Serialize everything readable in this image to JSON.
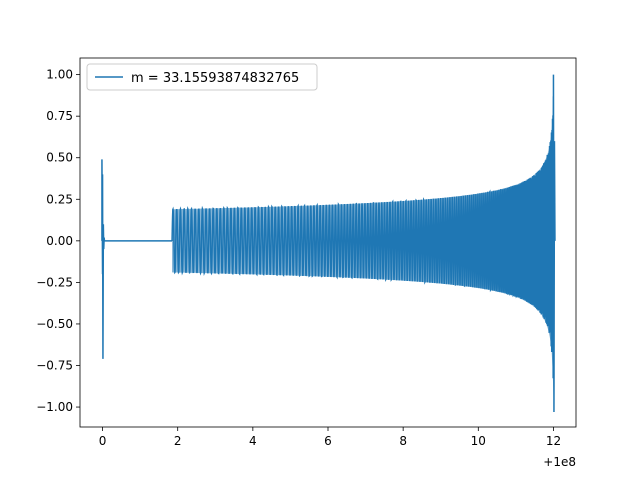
{
  "chart_data": {
    "type": "line",
    "title": "",
    "xlabel": "",
    "ylabel": "",
    "x_offset_label": "+1e8",
    "xlim": [
      -0.6,
      12.6
    ],
    "ylim": [
      -1.12,
      1.1
    ],
    "x_ticks": [
      0,
      2,
      4,
      6,
      8,
      10,
      12
    ],
    "x_tick_labels": [
      "0",
      "2",
      "4",
      "6",
      "8",
      "10",
      "12"
    ],
    "y_ticks": [
      -1.0,
      -0.75,
      -0.5,
      -0.25,
      0.0,
      0.25,
      0.5,
      0.75,
      1.0
    ],
    "y_tick_labels": [
      "−1.00",
      "−0.75",
      "−0.50",
      "−0.25",
      "0.00",
      "0.25",
      "0.50",
      "0.75",
      "1.00"
    ],
    "grid": false,
    "legend_position": "top-left",
    "series": [
      {
        "name": "m = 33.15593874832765",
        "color": "#1f77b4",
        "segments": [
          {
            "kind": "spike",
            "x": 0.0,
            "min": -0.71,
            "max": 0.49
          },
          {
            "kind": "flat",
            "x_start": 0.05,
            "x_end": 1.85,
            "y": 0.0
          },
          {
            "kind": "chirp",
            "x_start": 1.85,
            "x_end": 12.0,
            "amp_start": 0.19,
            "amp_end": 1.0,
            "amp_min_end": -1.03
          }
        ]
      }
    ]
  }
}
